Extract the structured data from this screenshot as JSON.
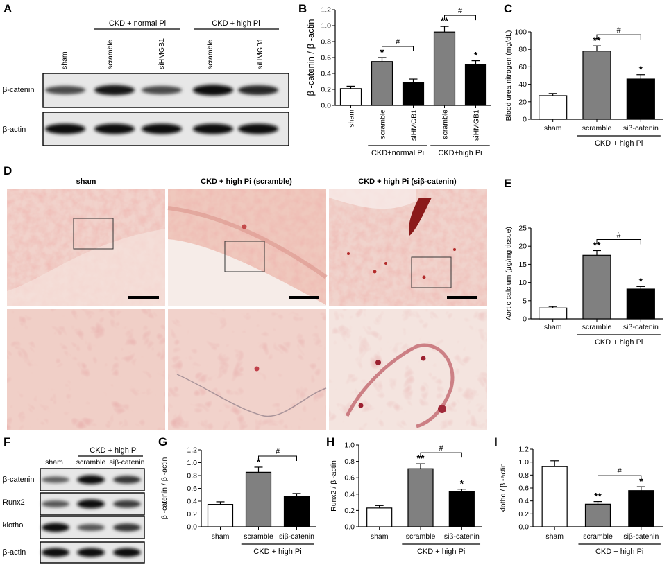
{
  "panel_letters": [
    "A",
    "B",
    "C",
    "D",
    "E",
    "F",
    "G",
    "H",
    "I"
  ],
  "blot_A": {
    "groups": [
      "CKD + normal Pi",
      "CKD + high Pi"
    ],
    "lanes": [
      "sham",
      "scramble",
      "siHMGB1",
      "scramble",
      "siHMGB1"
    ],
    "rows": [
      "β-catenin",
      "β-actin"
    ],
    "intensity": {
      "β-catenin": [
        0.55,
        0.9,
        0.55,
        1.0,
        0.8
      ],
      "β-actin": [
        0.95,
        0.95,
        0.95,
        0.95,
        0.95
      ]
    }
  },
  "histology_D": {
    "columns": [
      "sham",
      "CKD + high Pi (scramble)",
      "CKD + high Pi (siβ-catenin)"
    ]
  },
  "blot_F": {
    "group": "CKD + high Pi",
    "lanes": [
      "sham",
      "scramble",
      "siβ-catenin"
    ],
    "rows": [
      "β-catenin",
      "Runx2",
      "klotho",
      "β-actin"
    ],
    "intensity": {
      "β-catenin": [
        0.4,
        0.95,
        0.7
      ],
      "Runx2": [
        0.45,
        0.95,
        0.65
      ],
      "klotho": [
        0.95,
        0.45,
        0.7
      ],
      "β-actin": [
        0.95,
        0.95,
        0.95
      ]
    }
  },
  "colors": {
    "sham": "#ffffff",
    "scramble": "#808080",
    "knockdown": "#000000"
  },
  "chart_data": [
    {
      "panel": "B",
      "type": "bar",
      "categories": [
        "sham",
        "scramble",
        "siHMGB1",
        "scramble",
        "siHMGB1"
      ],
      "values": [
        0.21,
        0.55,
        0.29,
        0.92,
        0.51
      ],
      "errors": [
        0.03,
        0.05,
        0.04,
        0.07,
        0.05
      ],
      "sig": [
        "",
        "*",
        "",
        "**",
        "*"
      ],
      "fills": [
        "#ffffff",
        "#808080",
        "#000000",
        "#808080",
        "#000000"
      ],
      "ylabel": "β -catenin / β -actin",
      "ylim": [
        0,
        1.2
      ],
      "yticks": [
        "0.0",
        "0.2",
        "0.4",
        "0.6",
        "0.8",
        "1.0",
        "1.2"
      ],
      "compare": [
        {
          "from": 1,
          "to": 2,
          "label": "#"
        },
        {
          "from": 3,
          "to": 4,
          "label": "#"
        }
      ],
      "groups": [
        {
          "label": "CKD+normal Pi",
          "from": 1,
          "to": 2
        },
        {
          "label": "CKD+high Pi",
          "from": 3,
          "to": 4
        }
      ]
    },
    {
      "panel": "C",
      "type": "bar",
      "categories": [
        "sham",
        "scramble",
        "siβ-catenin"
      ],
      "values": [
        27,
        78,
        46
      ],
      "errors": [
        2.5,
        6,
        5
      ],
      "sig": [
        "",
        "**",
        "*"
      ],
      "fills": [
        "#ffffff",
        "#808080",
        "#000000"
      ],
      "ylabel": "Blood urea nitrogen (mg/dL)",
      "ylim": [
        0,
        100
      ],
      "yticks": [
        "0",
        "20",
        "40",
        "60",
        "80",
        "100"
      ],
      "compare": [
        {
          "from": 1,
          "to": 2,
          "label": "#"
        }
      ],
      "groups": [
        {
          "label": "CKD + high Pi",
          "from": 1,
          "to": 2
        }
      ]
    },
    {
      "panel": "E",
      "type": "bar",
      "categories": [
        "sham",
        "scramble",
        "siβ-catenin"
      ],
      "values": [
        3,
        17.5,
        8.2
      ],
      "errors": [
        0.4,
        1.3,
        0.7
      ],
      "sig": [
        "",
        "**",
        "*"
      ],
      "fills": [
        "#ffffff",
        "#808080",
        "#000000"
      ],
      "ylabel": "Aortic calcium (μg/mg tissue)",
      "ylim": [
        0,
        25
      ],
      "yticks": [
        "0",
        "5",
        "10",
        "15",
        "20",
        "25"
      ],
      "compare": [
        {
          "from": 1,
          "to": 2,
          "label": "#"
        }
      ],
      "groups": [
        {
          "label": "CKD + high Pi",
          "from": 1,
          "to": 2
        }
      ]
    },
    {
      "panel": "G",
      "type": "bar",
      "categories": [
        "sham",
        "scramble",
        "siβ-catenin"
      ],
      "values": [
        0.35,
        0.85,
        0.48
      ],
      "errors": [
        0.04,
        0.08,
        0.04
      ],
      "sig": [
        "",
        "*",
        ""
      ],
      "fills": [
        "#ffffff",
        "#808080",
        "#000000"
      ],
      "ylabel": "β -catenin / β -actin",
      "ylim": [
        0,
        1.2
      ],
      "yticks": [
        "0.0",
        "0.2",
        "0.4",
        "0.6",
        "0.8",
        "1.0",
        "1.2"
      ],
      "compare": [
        {
          "from": 1,
          "to": 2,
          "label": "#"
        }
      ],
      "groups": [
        {
          "label": "CKD + high Pi",
          "from": 1,
          "to": 2
        }
      ]
    },
    {
      "panel": "H",
      "type": "bar",
      "categories": [
        "sham",
        "scramble",
        "siβ-catenin"
      ],
      "values": [
        0.23,
        0.71,
        0.43
      ],
      "errors": [
        0.03,
        0.06,
        0.03
      ],
      "sig": [
        "",
        "**",
        "*"
      ],
      "fills": [
        "#ffffff",
        "#808080",
        "#000000"
      ],
      "ylabel": "Runx2 / β -actin",
      "ylim": [
        0,
        1.0
      ],
      "yticks": [
        "0.0",
        "0.2",
        "0.4",
        "0.6",
        "0.8",
        "1.0"
      ],
      "compare": [
        {
          "from": 1,
          "to": 2,
          "label": "#"
        }
      ],
      "groups": [
        {
          "label": "CKD + high Pi",
          "from": 1,
          "to": 2
        }
      ]
    },
    {
      "panel": "I",
      "type": "bar",
      "categories": [
        "sham",
        "scramble",
        "siβ-catenin"
      ],
      "values": [
        0.93,
        0.35,
        0.56
      ],
      "errors": [
        0.09,
        0.04,
        0.06
      ],
      "sig": [
        "",
        "**",
        "*"
      ],
      "fills": [
        "#ffffff",
        "#808080",
        "#000000"
      ],
      "ylabel": "klotho / β -actin",
      "ylim": [
        0,
        1.2
      ],
      "yticks": [
        "0.0",
        "0.2",
        "0.4",
        "0.6",
        "0.8",
        "1.0",
        "1.2"
      ],
      "compare": [
        {
          "from": 1,
          "to": 2,
          "label": "#"
        }
      ],
      "groups": [
        {
          "label": "CKD + high Pi",
          "from": 1,
          "to": 2
        }
      ]
    }
  ]
}
